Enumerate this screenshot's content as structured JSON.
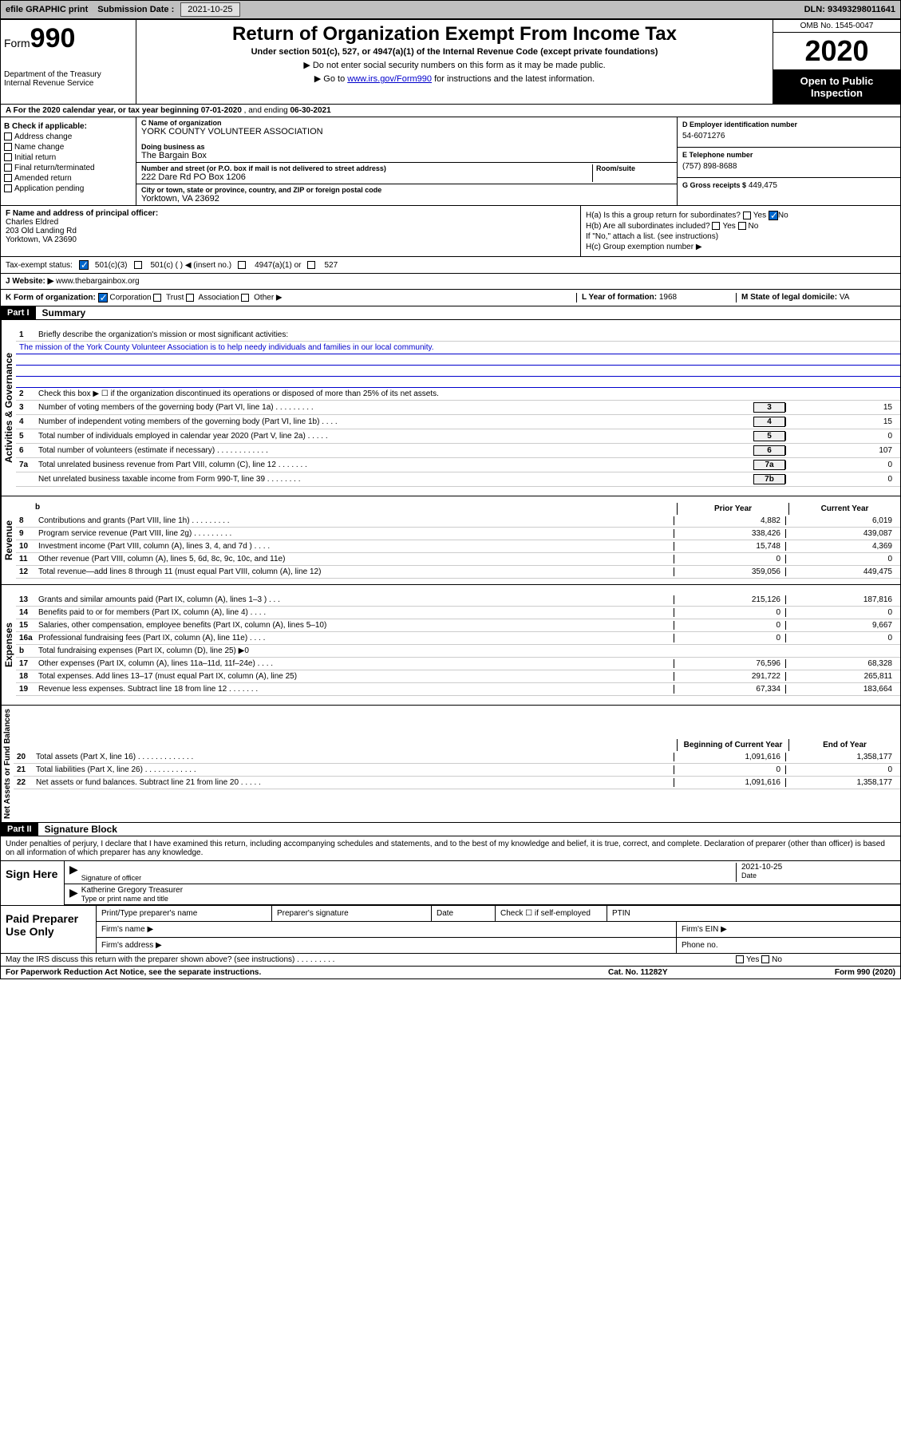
{
  "topbar": {
    "efile": "efile GRAPHIC print",
    "submission_label": "Submission Date :",
    "submission_date": "2021-10-25",
    "dln_label": "DLN:",
    "dln": "93493298011641"
  },
  "header": {
    "form_label": "Form",
    "form_num": "990",
    "dept": "Department of the Treasury",
    "irs": "Internal Revenue Service",
    "title": "Return of Organization Exempt From Income Tax",
    "subtitle": "Under section 501(c), 527, or 4947(a)(1) of the Internal Revenue Code (except private foundations)",
    "note1": "▶ Do not enter social security numbers on this form as it may be made public.",
    "note2_pre": "▶ Go to ",
    "note2_link": "www.irs.gov/Form990",
    "note2_post": " for instructions and the latest information.",
    "omb": "OMB No. 1545-0047",
    "year": "2020",
    "open": "Open to Public Inspection"
  },
  "line_a": {
    "text_pre": "A For the 2020 calendar year, or tax year beginning ",
    "begin": "07-01-2020",
    "text_mid": " , and ending ",
    "end": "06-30-2021"
  },
  "box_b": {
    "title": "B Check if applicable:",
    "items": [
      "Address change",
      "Name change",
      "Initial return",
      "Final return/terminated",
      "Amended return",
      "Application pending"
    ]
  },
  "box_c": {
    "name_label": "C Name of organization",
    "name": "YORK COUNTY VOLUNTEER ASSOCIATION",
    "dba_label": "Doing business as",
    "dba": "The Bargain Box",
    "street_label": "Number and street (or P.O. box if mail is not delivered to street address)",
    "street": "222 Dare Rd PO Box 1206",
    "room_label": "Room/suite",
    "city_label": "City or town, state or province, country, and ZIP or foreign postal code",
    "city": "Yorktown, VA  23692"
  },
  "box_d": {
    "label": "D Employer identification number",
    "value": "54-6071276"
  },
  "box_e": {
    "label": "E Telephone number",
    "value": "(757) 898-8688"
  },
  "box_g": {
    "label": "G Gross receipts $",
    "value": "449,475"
  },
  "box_f": {
    "label": "F  Name and address of principal officer:",
    "name": "Charles Eldred",
    "addr1": "203 Old Landing Rd",
    "addr2": "Yorktown, VA  23690"
  },
  "box_h": {
    "ha": "H(a)  Is this a group return for subordinates?",
    "hb": "H(b)  Are all subordinates included?",
    "hb_note": "If \"No,\" attach a list. (see instructions)",
    "hc": "H(c)  Group exemption number ▶",
    "yes": "Yes",
    "no": "No"
  },
  "tax_status": {
    "label": "Tax-exempt status:",
    "opt1": "501(c)(3)",
    "opt2": "501(c) (   ) ◀ (insert no.)",
    "opt3": "4947(a)(1) or",
    "opt4": "527"
  },
  "box_j": {
    "label": "J Website: ▶",
    "value": "www.thebargainbox.org"
  },
  "box_k": {
    "label": "K Form of organization:",
    "corp": "Corporation",
    "trust": "Trust",
    "assoc": "Association",
    "other": "Other ▶"
  },
  "box_l": {
    "label": "L Year of formation:",
    "value": "1968"
  },
  "box_m": {
    "label": "M State of legal domicile:",
    "value": "VA"
  },
  "part1": {
    "header": "Part I",
    "title": "Summary",
    "vtext_gov": "Activities & Governance",
    "vtext_rev": "Revenue",
    "vtext_exp": "Expenses",
    "vtext_net": "Net Assets or Fund Balances",
    "line1": "Briefly describe the organization's mission or most significant activities:",
    "mission": "The mission of the York County Volunteer Association is to help needy individuals and families in our local community.",
    "line2": "Check this box ▶ ☐  if the organization discontinued its operations or disposed of more than 25% of its net assets.",
    "lines": [
      {
        "n": "3",
        "d": "Number of voting members of the governing body (Part VI, line 1a)  .    .    .    .    .    .    .    .    .",
        "b": "3",
        "v": "15"
      },
      {
        "n": "4",
        "d": "Number of independent voting members of the governing body (Part VI, line 1b)  .   .   .   .",
        "b": "4",
        "v": "15"
      },
      {
        "n": "5",
        "d": "Total number of individuals employed in calendar year 2020 (Part V, line 2a)  .   .   .   .   .",
        "b": "5",
        "v": "0"
      },
      {
        "n": "6",
        "d": "Total number of volunteers (estimate if necessary)  .   .   .   .   .   .   .   .   .   .   .   .",
        "b": "6",
        "v": "107"
      },
      {
        "n": "7a",
        "d": "Total unrelated business revenue from Part VIII, column (C), line 12  .   .   .   .   .   .   .",
        "b": "7a",
        "v": "0"
      },
      {
        "n": "",
        "d": "Net unrelated business taxable income from Form 990-T, line 39  .   .   .   .   .   .   .   .",
        "b": "7b",
        "v": "0"
      }
    ],
    "col_prior": "Prior Year",
    "col_current": "Current Year",
    "rev_lines": [
      {
        "n": "8",
        "d": "Contributions and grants (Part VIII, line 1h)  .   .   .   .   .   .   .   .   .",
        "p": "4,882",
        "c": "6,019"
      },
      {
        "n": "9",
        "d": "Program service revenue (Part VIII, line 2g)  .   .   .   .   .   .   .   .   .",
        "p": "338,426",
        "c": "439,087"
      },
      {
        "n": "10",
        "d": "Investment income (Part VIII, column (A), lines 3, 4, and 7d )  .   .   .   .",
        "p": "15,748",
        "c": "4,369"
      },
      {
        "n": "11",
        "d": "Other revenue (Part VIII, column (A), lines 5, 6d, 8c, 9c, 10c, and 11e)",
        "p": "0",
        "c": "0"
      },
      {
        "n": "12",
        "d": "Total revenue—add lines 8 through 11 (must equal Part VIII, column (A), line 12)",
        "p": "359,056",
        "c": "449,475"
      }
    ],
    "exp_lines": [
      {
        "n": "13",
        "d": "Grants and similar amounts paid (Part IX, column (A), lines 1–3 )  .   .   .",
        "p": "215,126",
        "c": "187,816"
      },
      {
        "n": "14",
        "d": "Benefits paid to or for members (Part IX, column (A), line 4)  .   .   .   .",
        "p": "0",
        "c": "0"
      },
      {
        "n": "15",
        "d": "Salaries, other compensation, employee benefits (Part IX, column (A), lines 5–10)",
        "p": "0",
        "c": "9,667"
      },
      {
        "n": "16a",
        "d": "Professional fundraising fees (Part IX, column (A), line 11e)  .   .   .   .",
        "p": "0",
        "c": "0"
      },
      {
        "n": "b",
        "d": "Total fundraising expenses (Part IX, column (D), line 25) ▶0",
        "p": "",
        "c": "",
        "shaded": true
      },
      {
        "n": "17",
        "d": "Other expenses (Part IX, column (A), lines 11a–11d, 11f–24e)  .   .   .   .",
        "p": "76,596",
        "c": "68,328"
      },
      {
        "n": "18",
        "d": "Total expenses. Add lines 13–17 (must equal Part IX, column (A), line 25)",
        "p": "291,722",
        "c": "265,811"
      },
      {
        "n": "19",
        "d": "Revenue less expenses. Subtract line 18 from line 12  .   .   .   .   .   .   .",
        "p": "67,334",
        "c": "183,664"
      }
    ],
    "col_begin": "Beginning of Current Year",
    "col_end": "End of Year",
    "net_lines": [
      {
        "n": "20",
        "d": "Total assets (Part X, line 16)  .   .   .   .   .   .   .   .   .   .   .   .   .",
        "p": "1,091,616",
        "c": "1,358,177"
      },
      {
        "n": "21",
        "d": "Total liabilities (Part X, line 26)  .   .   .   .   .   .   .   .   .   .   .   .",
        "p": "0",
        "c": "0"
      },
      {
        "n": "22",
        "d": "Net assets or fund balances. Subtract line 21 from line 20  .   .   .   .   .",
        "p": "1,091,616",
        "c": "1,358,177"
      }
    ]
  },
  "part2": {
    "header": "Part II",
    "title": "Signature Block",
    "intro": "Under penalties of perjury, I declare that I have examined this return, including accompanying schedules and statements, and to the best of my knowledge and belief, it is true, correct, and complete. Declaration of preparer (other than officer) is based on all information of which preparer has any knowledge.",
    "sign_here": "Sign Here",
    "sig_officer": "Signature of officer",
    "sig_date": "2021-10-25",
    "date_label": "Date",
    "officer_name": "Katherine Gregory Treasurer",
    "type_name": "Type or print name and title",
    "paid_prep": "Paid Preparer Use Only",
    "prep_name": "Print/Type preparer's name",
    "prep_sig": "Preparer's signature",
    "prep_date": "Date",
    "check_self": "Check ☐ if self-employed",
    "ptin": "PTIN",
    "firm_name": "Firm's name  ▶",
    "firm_ein": "Firm's EIN ▶",
    "firm_addr": "Firm's address ▶",
    "phone": "Phone no.",
    "discuss": "May the IRS discuss this return with the preparer shown above? (see instructions)  .   .   .   .   .   .   .   .   .",
    "yes": "Yes",
    "no": "No"
  },
  "footer": {
    "paperwork": "For Paperwork Reduction Act Notice, see the separate instructions.",
    "cat": "Cat. No. 11282Y",
    "form": "Form 990 (2020)"
  }
}
